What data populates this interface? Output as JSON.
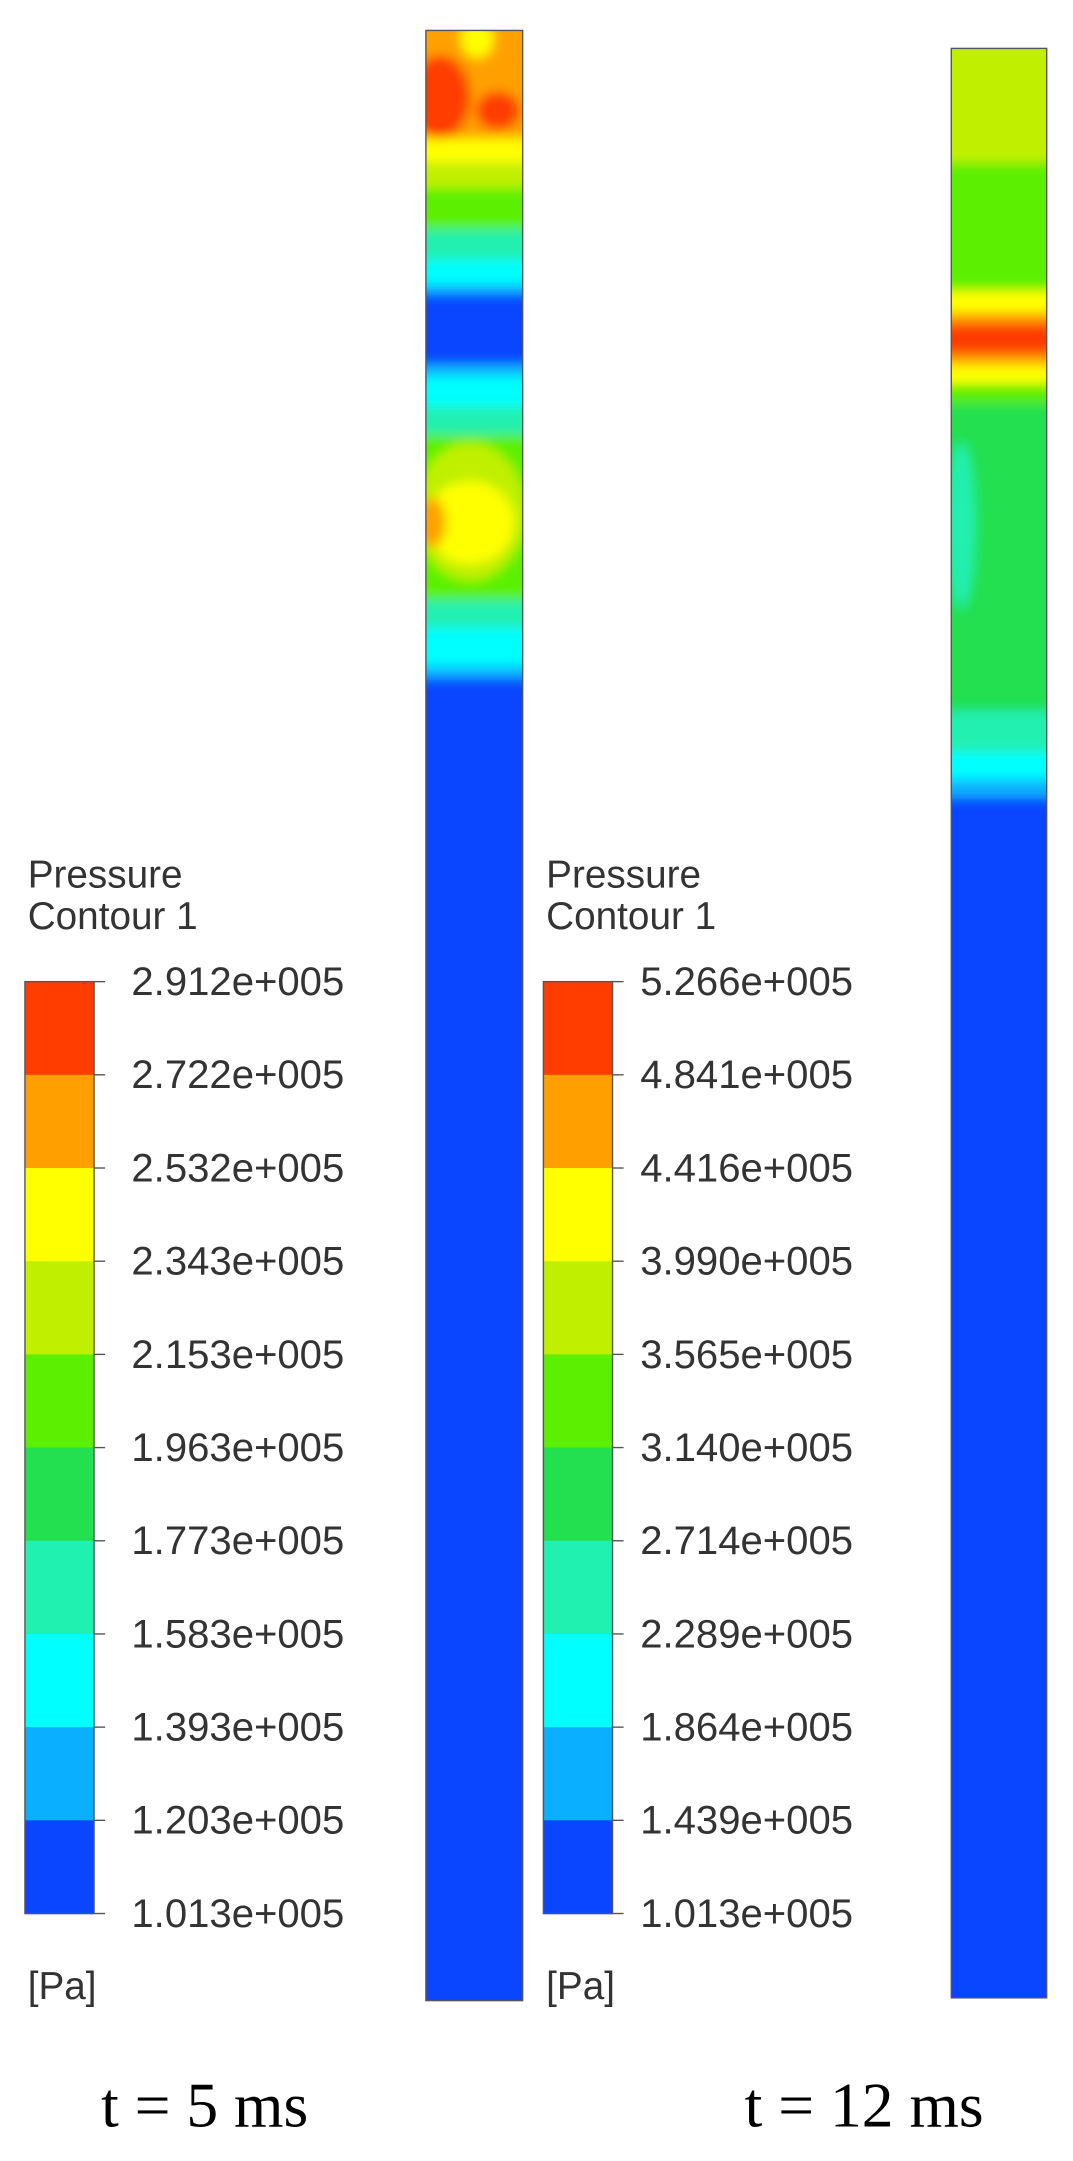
{
  "panels": [
    {
      "legend": {
        "title": "Pressure",
        "subtitle": "Contour 1",
        "unit": "[Pa]",
        "levels": [
          "2.912e+005",
          "2.722e+005",
          "2.532e+005",
          "2.343e+005",
          "2.153e+005",
          "1.963e+005",
          "1.773e+005",
          "1.583e+005",
          "1.393e+005",
          "1.203e+005",
          "1.013e+005"
        ]
      },
      "caption": "t = 5 ms"
    },
    {
      "legend": {
        "title": "Pressure",
        "subtitle": "Contour 1",
        "unit": "[Pa]",
        "levels": [
          "5.266e+005",
          "4.841e+005",
          "4.416e+005",
          "3.990e+005",
          "3.565e+005",
          "3.140e+005",
          "2.714e+005",
          "2.289e+005",
          "1.864e+005",
          "1.439e+005",
          "1.013e+005"
        ]
      },
      "caption": "t = 12 ms"
    }
  ]
}
